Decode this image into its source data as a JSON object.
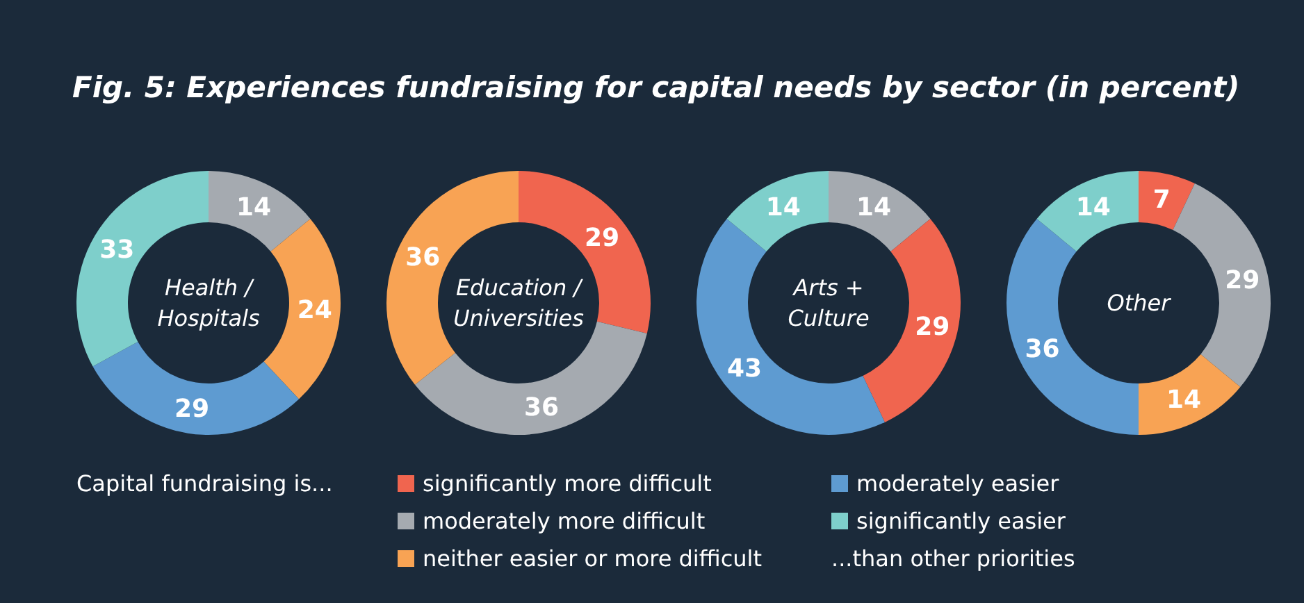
{
  "chart_data": [
    {
      "type": "donut",
      "title": "Health / Hospitals",
      "annotations": [
        "Fig. 5: Experiences fundraising for capital needs by sector (in percent)",
        "...than other priorities"
      ],
      "categories": [
        "significantly more difficult",
        "moderately more difficult",
        "neither easier or more difficult",
        "moderately easier",
        "significantly easier"
      ],
      "values": [
        null,
        14,
        24,
        29,
        33
      ],
      "colors": [
        "#f0654f",
        "#a5aab0",
        "#f8a354",
        "#5e9bd1",
        "#7ecfcb"
      ],
      "data_labels": true,
      "legend": "bottom",
      "legend_title": "Capital fundraising is..."
    },
    {
      "type": "donut",
      "title": "Education / Universities",
      "categories": [
        null,
        null,
        null
      ],
      "values": [
        29,
        36,
        36
      ],
      "colors": [
        "#f0654f",
        "#a5aab0",
        "#f8a354"
      ],
      "data_labels": true
    },
    {
      "type": "donut",
      "title": "Arts + Culture",
      "categories": [
        null,
        null,
        null,
        null
      ],
      "values": [
        14,
        29,
        43,
        14
      ],
      "colors": [
        "#a5aab0",
        "#f0654f",
        "#5e9bd1",
        "#7ecfcb"
      ],
      "data_labels": true
    },
    {
      "type": "donut",
      "title": "Other",
      "categories": [
        null,
        null,
        null,
        null,
        null
      ],
      "values": [
        7,
        29,
        14,
        36,
        14
      ],
      "colors": [
        "#f0654f",
        "#a5aab0",
        "#f8a354",
        "#5e9bd1",
        "#7ecfcb"
      ],
      "data_labels": true
    }
  ]
}
